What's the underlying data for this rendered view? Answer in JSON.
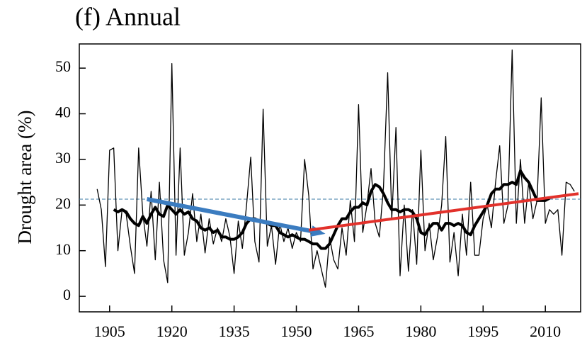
{
  "chart_data": {
    "type": "line",
    "title": "(f) Annual",
    "y_label": "Drought area (%)",
    "x": [
      1902,
      1903,
      1904,
      1905,
      1906,
      1907,
      1908,
      1909,
      1910,
      1911,
      1912,
      1913,
      1914,
      1915,
      1916,
      1917,
      1918,
      1919,
      1920,
      1921,
      1922,
      1923,
      1924,
      1925,
      1926,
      1927,
      1928,
      1929,
      1930,
      1931,
      1932,
      1933,
      1934,
      1935,
      1936,
      1937,
      1938,
      1939,
      1940,
      1941,
      1942,
      1943,
      1944,
      1945,
      1946,
      1947,
      1948,
      1949,
      1950,
      1951,
      1952,
      1953,
      1954,
      1955,
      1956,
      1957,
      1958,
      1959,
      1960,
      1961,
      1962,
      1963,
      1964,
      1965,
      1966,
      1967,
      1968,
      1969,
      1970,
      1971,
      1972,
      1973,
      1974,
      1975,
      1976,
      1977,
      1978,
      1979,
      1980,
      1981,
      1982,
      1983,
      1984,
      1985,
      1986,
      1987,
      1988,
      1989,
      1990,
      1991,
      1992,
      1993,
      1994,
      1995,
      1996,
      1997,
      1998,
      1999,
      2000,
      2001,
      2002,
      2003,
      2004,
      2005,
      2006,
      2007,
      2008,
      2009,
      2010,
      2011,
      2012,
      2013,
      2014,
      2015,
      2016,
      2017
    ],
    "series": [
      {
        "color": "#000000",
        "width": 1.3,
        "values": [
          23.5,
          19,
          6.5,
          32,
          32.5,
          10,
          19,
          18,
          11,
          5,
          32.5,
          18,
          11,
          23,
          8,
          25,
          8,
          3,
          51,
          9,
          32.5,
          9,
          14,
          22.5,
          12,
          18,
          9.5,
          17,
          11.5,
          15,
          12,
          17,
          13,
          5,
          16.5,
          10.5,
          20,
          30.5,
          12,
          7.5,
          41,
          11,
          15.5,
          7,
          16,
          12,
          15,
          10.5,
          14,
          12,
          30,
          22,
          6,
          10,
          6,
          2,
          13,
          8,
          6,
          15,
          9,
          21,
          12,
          42,
          14,
          20,
          28,
          16,
          13,
          24,
          49,
          17,
          37,
          4.5,
          20,
          5.5,
          19,
          7,
          32,
          10,
          16,
          8,
          13,
          20,
          35,
          7.5,
          14,
          4.5,
          18,
          9,
          25,
          9,
          9,
          17,
          20,
          15,
          25,
          33,
          16,
          20,
          54,
          16,
          30,
          16,
          25,
          17,
          21,
          43.5,
          16,
          19,
          18,
          19,
          9,
          25,
          24.5,
          23
        ]
      },
      {
        "color": "#000000",
        "width": 4,
        "values": [
          null,
          null,
          null,
          null,
          19,
          18.5,
          19,
          18.5,
          17,
          16,
          15.5,
          17.5,
          16,
          18,
          19.5,
          18,
          17.5,
          20,
          19,
          18,
          19,
          18,
          18.5,
          17,
          16.5,
          15,
          14.5,
          15,
          14,
          14.5,
          13,
          13,
          12.5,
          12.5,
          13,
          14,
          16,
          17,
          17,
          16.5,
          16.5,
          16,
          15.5,
          15.5,
          14,
          13.5,
          13,
          13.5,
          13,
          12.5,
          12.5,
          12,
          11.5,
          11.5,
          10.5,
          10.5,
          11.5,
          13.5,
          15.5,
          17,
          17,
          18.5,
          19.5,
          19.5,
          20.5,
          20,
          23,
          24.5,
          24,
          22.5,
          20.5,
          19,
          19,
          18.5,
          19,
          19,
          18.5,
          17,
          14,
          13.5,
          15,
          16,
          16,
          14.5,
          16,
          16,
          15.5,
          16,
          15.5,
          14,
          13.5,
          15.5,
          17,
          18.5,
          20,
          22.5,
          23.5,
          23.5,
          24.5,
          24.5,
          25,
          24.5,
          27.5,
          26,
          25,
          23,
          21,
          21,
          21,
          21.5,
          null,
          null,
          null,
          null,
          null,
          null
        ]
      }
    ],
    "trend_lines": [
      {
        "x": [
          1914,
          1957
        ],
        "y": [
          21.3,
          13.7
        ],
        "color": "#3b7cc0",
        "arrow": true
      },
      {
        "x": [
          1953,
          2018
        ],
        "y": [
          14.5,
          22.5
        ],
        "color": "#e2312b",
        "arrow": false
      }
    ],
    "mean_line": 21.3,
    "mean_color": "#3a7aa5",
    "xlim": [
      1897.7,
      2018.5
    ],
    "ylim": [
      -3.4,
      55.3
    ],
    "xticks": [
      1905,
      1920,
      1935,
      1950,
      1965,
      1980,
      1995,
      2010
    ],
    "yticks": [
      0,
      10,
      20,
      30,
      40,
      50
    ]
  }
}
